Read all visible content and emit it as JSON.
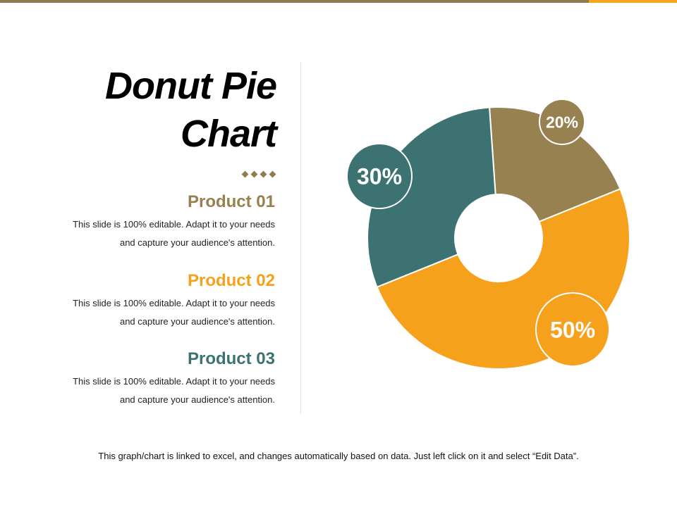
{
  "colors": {
    "bar_main": "#8f7c4e",
    "bar_accent": "#f8a51a",
    "product01": "#978150",
    "product02": "#f6a11b",
    "product03": "#3c7372",
    "diamond": "#917d4f"
  },
  "title_line1": "Donut Pie",
  "title_line2": "Chart",
  "products": [
    {
      "name": "Product 01",
      "line1": "This slide is 100% editable. Adapt it to your needs",
      "line2": "and capture your audience's attention."
    },
    {
      "name": "Product 02",
      "line1": "This slide is 100% editable. Adapt it to your needs",
      "line2": "and capture your audience's attention."
    },
    {
      "name": "Product 03",
      "line1": "This slide is 100% editable. Adapt it to your needs",
      "line2": "and capture your audience's attention."
    }
  ],
  "footnote": "This graph/chart is linked to excel, and changes automatically based on data. Just left click on it and select “Edit Data”.",
  "chart_data": {
    "type": "pie",
    "donut": true,
    "title": "Donut Pie Chart",
    "categories": [
      "Product 01",
      "Product 02",
      "Product 03"
    ],
    "values": [
      20,
      50,
      30
    ],
    "labels": [
      "20%",
      "50%",
      "30%"
    ],
    "colors": [
      "#978150",
      "#f6a11b",
      "#3c7372"
    ],
    "start_angle_deg": -4,
    "legend": "left"
  }
}
